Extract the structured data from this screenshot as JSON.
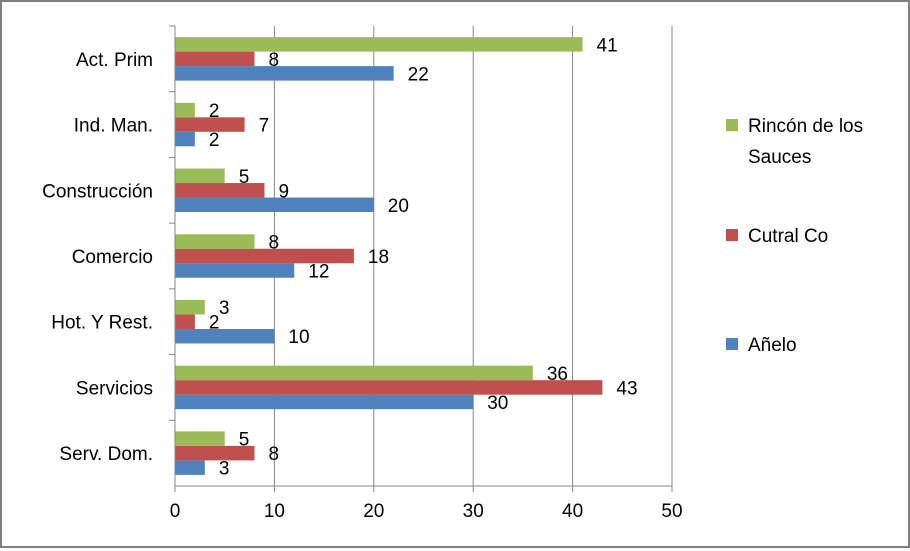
{
  "chart_data": {
    "type": "bar",
    "orientation": "horizontal",
    "categories": [
      "Act. Prim",
      "Ind. Man.",
      "Construcción",
      "Comercio",
      "Hot. Y Rest.",
      "Servicios",
      "Serv. Dom."
    ],
    "series": [
      {
        "name": "Añelo",
        "color": "#4f81bd",
        "values": [
          22,
          2,
          20,
          12,
          10,
          30,
          3
        ]
      },
      {
        "name": "Cutral Co",
        "color": "#c0504d",
        "values": [
          8,
          7,
          9,
          18,
          2,
          43,
          8
        ]
      },
      {
        "name": "Rincón de los Sauces",
        "color": "#9bbb59",
        "values": [
          41,
          2,
          5,
          8,
          3,
          36,
          5
        ]
      }
    ],
    "xlim": [
      0,
      50
    ],
    "xticks": [
      "0",
      "10",
      "20",
      "30",
      "40",
      "50"
    ],
    "grid": "vertical",
    "legend": {
      "position": "right",
      "entries": [
        {
          "lines": [
            "Rincón de los",
            "Sauces"
          ],
          "color": "#9bbb59"
        },
        {
          "lines": [
            "Cutral Co"
          ],
          "color": "#c0504d"
        },
        {
          "lines": [
            "Añelo"
          ],
          "color": "#4f81bd"
        }
      ]
    },
    "data_labels": true
  }
}
